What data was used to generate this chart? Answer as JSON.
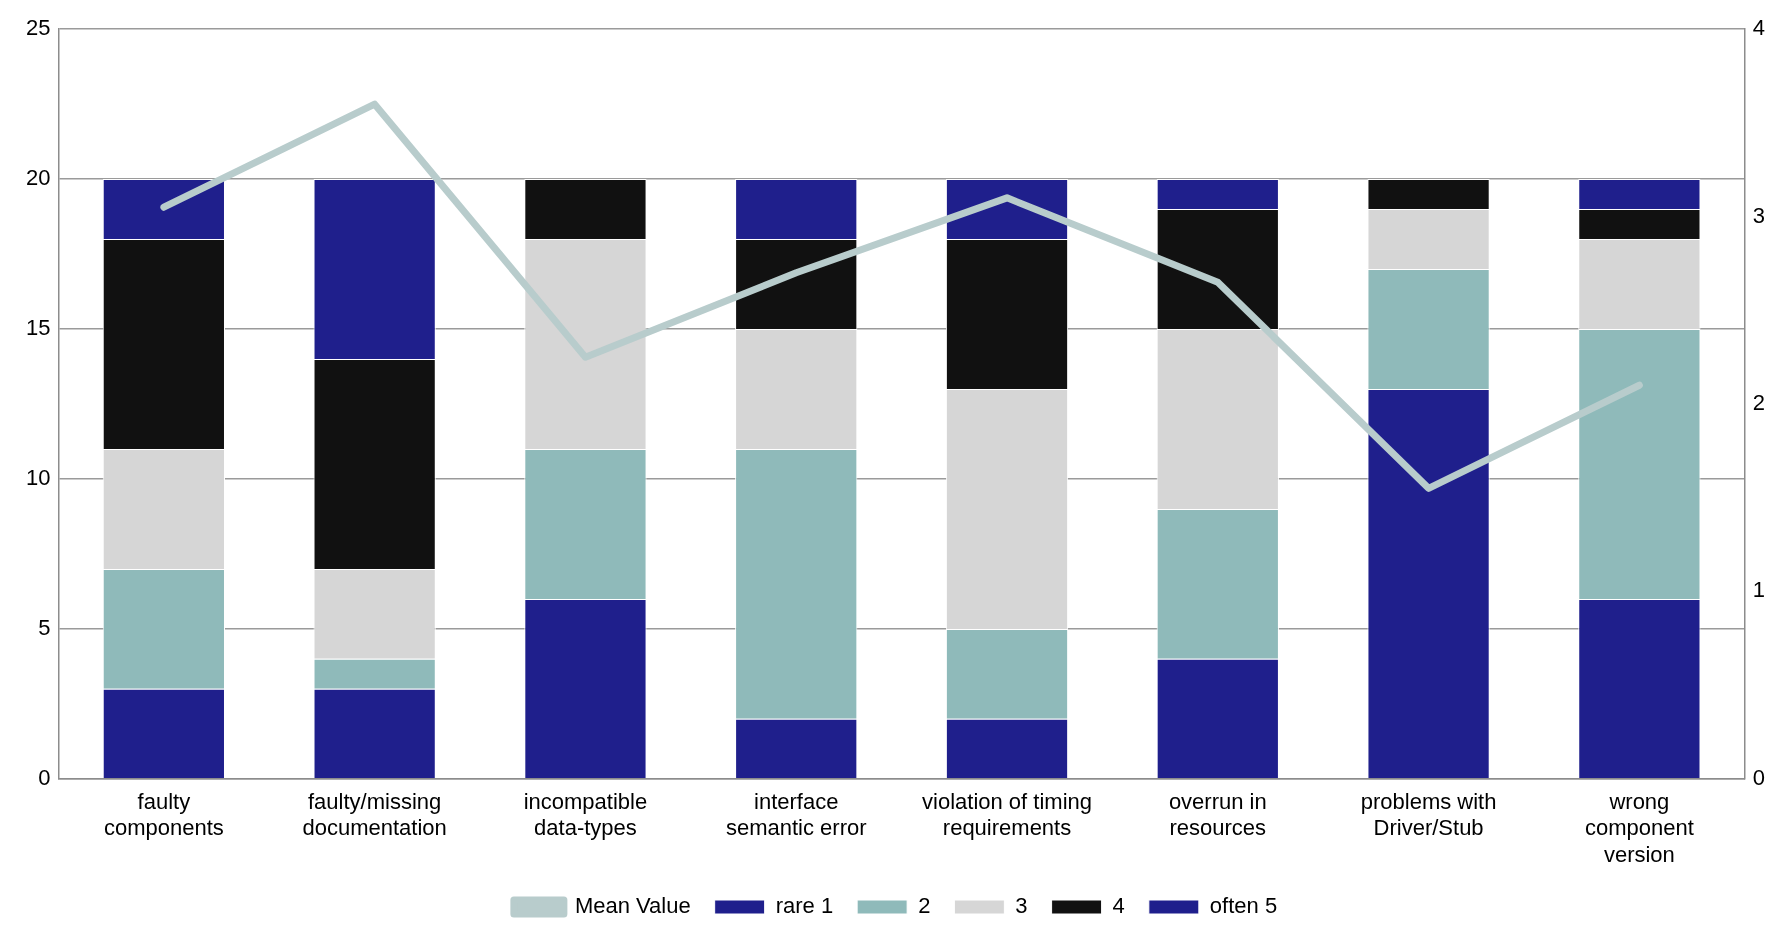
{
  "chart_data": {
    "type": "bar",
    "stacked": true,
    "categories": [
      "faulty components",
      "faulty/missing documentation",
      "incompatible data-types",
      "interface semantic error",
      "violation of timing requirements",
      "overrun in resources",
      "problems with Driver/Stub",
      "wrong component version"
    ],
    "series": [
      {
        "name": "rare 1",
        "color": "#1f1f8c",
        "values": [
          3,
          3,
          6,
          2,
          2,
          4,
          13,
          6
        ]
      },
      {
        "name": "2",
        "color": "#8fbaba",
        "values": [
          4,
          1,
          5,
          9,
          3,
          5,
          4,
          9
        ]
      },
      {
        "name": "3",
        "color": "#d6d6d6",
        "values": [
          4,
          3,
          7,
          4,
          8,
          6,
          2,
          3
        ]
      },
      {
        "name": "4",
        "color": "#111111",
        "values": [
          7,
          7,
          2,
          3,
          5,
          4,
          1,
          1
        ]
      },
      {
        "name": "often 5",
        "color": "#1f1f8c",
        "values": [
          2,
          6,
          0,
          2,
          2,
          1,
          0,
          1
        ]
      },
      {
        "name": "Mean Value",
        "type": "line",
        "axis": "y2",
        "color": "#b8cccc",
        "values": [
          3.05,
          3.6,
          2.25,
          2.7,
          3.1,
          2.65,
          1.55,
          2.1
        ]
      }
    ],
    "ylim": [
      0,
      25
    ],
    "yticks": [
      0,
      5,
      10,
      15,
      20,
      25
    ],
    "y2lim": [
      0,
      4
    ],
    "y2ticks": [
      0,
      1,
      2,
      3,
      4
    ],
    "grid": "y",
    "legend": "bottom",
    "marker": "none"
  }
}
